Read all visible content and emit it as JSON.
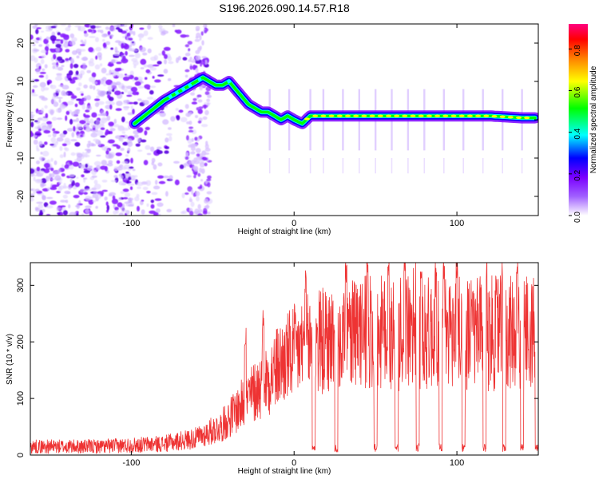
{
  "page_title": "S196.2026.090.14.57.R18",
  "chart_data": [
    {
      "type": "heatmap",
      "name": "spectrogram",
      "xlabel": "Height of straight line (km)",
      "ylabel": "Frequency (Hz)",
      "xlim": [
        -162,
        150
      ],
      "ylim": [
        -25,
        25
      ],
      "x_ticks": [
        -100,
        0,
        100
      ],
      "y_ticks": [
        -20,
        -10,
        0,
        10,
        20
      ],
      "ridge": {
        "x": [
          -98,
          -92,
          -86,
          -80,
          -76,
          -72,
          -68,
          -64,
          -60,
          -56,
          -52,
          -48,
          -44,
          -40,
          -36,
          -32,
          -28,
          -24,
          -20,
          -16,
          -12,
          -8,
          -4,
          0,
          5,
          10,
          20,
          40,
          60,
          80,
          100,
          120,
          140,
          148
        ],
        "y": [
          -1,
          1,
          3,
          5,
          6,
          7,
          8,
          9,
          10,
          11,
          10,
          9,
          9,
          10,
          8,
          6,
          4,
          3,
          2,
          2,
          1,
          0,
          1,
          0,
          -1,
          1,
          1,
          1,
          1,
          1,
          1,
          1,
          0.5,
          0.5
        ]
      },
      "colorbar": {
        "label": "Normalized spectral amplitude",
        "range": [
          0.0,
          0.92
        ],
        "ticks": [
          "0.0",
          "0.2",
          "0.4",
          "0.6",
          "0.8"
        ],
        "colors": [
          "#ffffff",
          "#7a00ff",
          "#0000ff",
          "#00ffff",
          "#00ff00",
          "#ffff00",
          "#ff8000",
          "#ff0000",
          "#ff0080"
        ]
      }
    },
    {
      "type": "line",
      "name": "snr",
      "xlabel": "Height of straight line (km)",
      "ylabel": "SNR (10 * v/v)",
      "xlim": [
        -162,
        150
      ],
      "ylim": [
        0,
        340
      ],
      "x_ticks": [
        -100,
        0,
        100
      ],
      "y_ticks": [
        0,
        100,
        200,
        300
      ],
      "color": "#ee3333",
      "envelope": {
        "x": [
          -162,
          -120,
          -80,
          -60,
          -45,
          -35,
          -25,
          -15,
          -5,
          5,
          15,
          25,
          35,
          45,
          60,
          80,
          100,
          120,
          140,
          150
        ],
        "y": [
          15,
          15,
          20,
          30,
          50,
          80,
          110,
          140,
          170,
          190,
          200,
          205,
          210,
          215,
          215,
          215,
          215,
          215,
          215,
          215
        ]
      },
      "dips_x": [
        12,
        26,
        50,
        63,
        76,
        90,
        104,
        117,
        129,
        140,
        149
      ],
      "peaks_x": [
        -30,
        -19,
        7,
        32,
        45,
        58,
        68,
        78,
        87,
        92,
        100,
        118,
        128,
        137
      ]
    }
  ]
}
